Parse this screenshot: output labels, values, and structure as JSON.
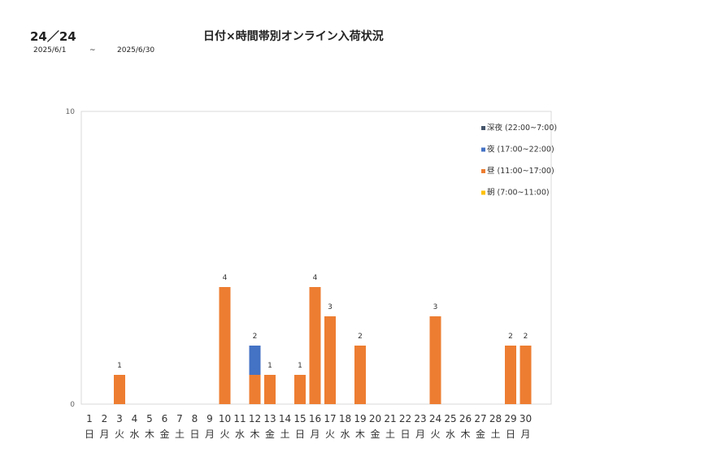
{
  "header": {
    "code": "24／24",
    "title": "日付×時間帯別オンライン入荷状況",
    "date_from": "2025/6/1",
    "tilde": "~",
    "date_to": "2025/6/30"
  },
  "chart_data": {
    "type": "bar",
    "stacked": true,
    "categories": [
      "1",
      "2",
      "3",
      "4",
      "5",
      "6",
      "7",
      "8",
      "9",
      "10",
      "11",
      "12",
      "13",
      "14",
      "15",
      "16",
      "17",
      "18",
      "19",
      "20",
      "21",
      "22",
      "23",
      "24",
      "25",
      "26",
      "27",
      "28",
      "29",
      "30"
    ],
    "weekdays": [
      "日",
      "月",
      "火",
      "水",
      "木",
      "金",
      "土",
      "日",
      "月",
      "火",
      "水",
      "木",
      "金",
      "土",
      "日",
      "月",
      "火",
      "水",
      "木",
      "金",
      "土",
      "日",
      "月",
      "火",
      "水",
      "木",
      "金",
      "土",
      "日",
      "月"
    ],
    "ylim": [
      0,
      10
    ],
    "yticks": [
      "0",
      "10"
    ],
    "legend_position": "top-right",
    "series": [
      {
        "name": "朝 (7:00~11:00)",
        "color": "#FFC000",
        "values": [
          0,
          0,
          0,
          0,
          0,
          0,
          0,
          0,
          0,
          0,
          0,
          0,
          0,
          0,
          0,
          0,
          0,
          0,
          0,
          0,
          0,
          0,
          0,
          0,
          0,
          0,
          0,
          0,
          0,
          0
        ]
      },
      {
        "name": "昼 (11:00~17:00)",
        "color": "#ED7D31",
        "values": [
          0,
          0,
          1,
          0,
          0,
          0,
          0,
          0,
          0,
          4,
          0,
          1,
          1,
          0,
          1,
          4,
          3,
          0,
          2,
          0,
          0,
          0,
          0,
          3,
          0,
          0,
          0,
          0,
          2,
          2
        ]
      },
      {
        "name": "夜 (17:00~22:00)",
        "color": "#4472C4",
        "values": [
          0,
          0,
          0,
          0,
          0,
          0,
          0,
          0,
          0,
          0,
          0,
          1,
          0,
          0,
          0,
          0,
          0,
          0,
          0,
          0,
          0,
          0,
          0,
          0,
          0,
          0,
          0,
          0,
          0,
          0
        ]
      },
      {
        "name": "深夜 (22:00~7:00)",
        "color": "#44546A",
        "values": [
          0,
          0,
          0,
          0,
          0,
          0,
          0,
          0,
          0,
          0,
          0,
          0,
          0,
          0,
          0,
          0,
          0,
          0,
          0,
          0,
          0,
          0,
          0,
          0,
          0,
          0,
          0,
          0,
          0,
          0
        ]
      }
    ],
    "totals": [
      0,
      0,
      1,
      0,
      0,
      0,
      0,
      0,
      0,
      4,
      0,
      2,
      1,
      0,
      1,
      4,
      3,
      0,
      2,
      0,
      0,
      0,
      0,
      3,
      0,
      0,
      0,
      0,
      2,
      2
    ]
  }
}
